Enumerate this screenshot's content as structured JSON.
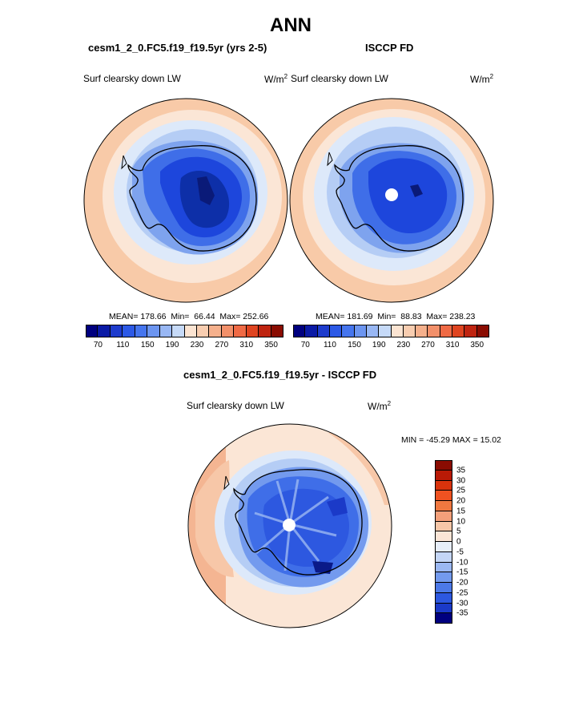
{
  "page": {
    "title": "ANN",
    "diff_title": "cesm1_2_0.FC5.f19_f19.5yr - ISCCP FD"
  },
  "panels": [
    {
      "id": "model",
      "title": "cesm1_2_0.FC5.f19_f19.5yr (yrs 2-5)",
      "variable": "Surf clearsky down LW",
      "units_base": "W/m",
      "units_exp": "2",
      "stats": {
        "mean_label": "MEAN=",
        "mean": "178.66",
        "min_label": "Min=",
        "min": "66.44",
        "max_label": "Max=",
        "max": "252.66"
      }
    },
    {
      "id": "obs",
      "title": "ISCCP FD",
      "variable": "Surf clearsky down LW",
      "units_base": "W/m",
      "units_exp": "2",
      "stats": {
        "mean_label": "MEAN=",
        "mean": "181.69",
        "min_label": "Min=",
        "min": "88.83",
        "max_label": "Max=",
        "max": "238.23"
      }
    }
  ],
  "diff_panel": {
    "variable": "Surf clearsky down LW",
    "units_base": "W/m",
    "units_exp": "2",
    "minmax_text": "MIN = -45.29 MAX =  15.02"
  },
  "colorbar_abs": {
    "colors": [
      "#00007f",
      "#0a1aa5",
      "#1e3ccd",
      "#2c59e6",
      "#4575ee",
      "#6c95f0",
      "#98b7f4",
      "#c6daf8",
      "#fbe4d2",
      "#f8cdb0",
      "#f5b08c",
      "#f2906a",
      "#ef6a45",
      "#df4420",
      "#bf2410",
      "#8a0c02"
    ],
    "tick_labels": [
      "70",
      "110",
      "150",
      "190",
      "230",
      "270",
      "310",
      "350"
    ]
  },
  "colorbar_diff": {
    "colors": [
      "#8a0c02",
      "#b91a06",
      "#d9330c",
      "#ef5221",
      "#f07840",
      "#f4a07a",
      "#f7c7a8",
      "#fbe5d6",
      "#e7eef9",
      "#c4d6f6",
      "#9bb8f2",
      "#739aee",
      "#4c79e8",
      "#2d58e0",
      "#1b3ac8",
      "#00007f"
    ],
    "tick_labels": [
      "35",
      "30",
      "25",
      "20",
      "15",
      "10",
      "5",
      "0",
      "-5",
      "-10",
      "-15",
      "-20",
      "-25",
      "-30",
      "-35"
    ]
  },
  "colors": {
    "outer_salmon": "#f8caa8",
    "light_peach": "#fbe6d6",
    "pale_blue": "#dde9fa",
    "light_blue": "#b5cdf5",
    "mid_blue": "#7ea3ee",
    "blue": "#3f6ee8",
    "deep_blue": "#1d46dc",
    "navy": "#0a2293"
  }
}
